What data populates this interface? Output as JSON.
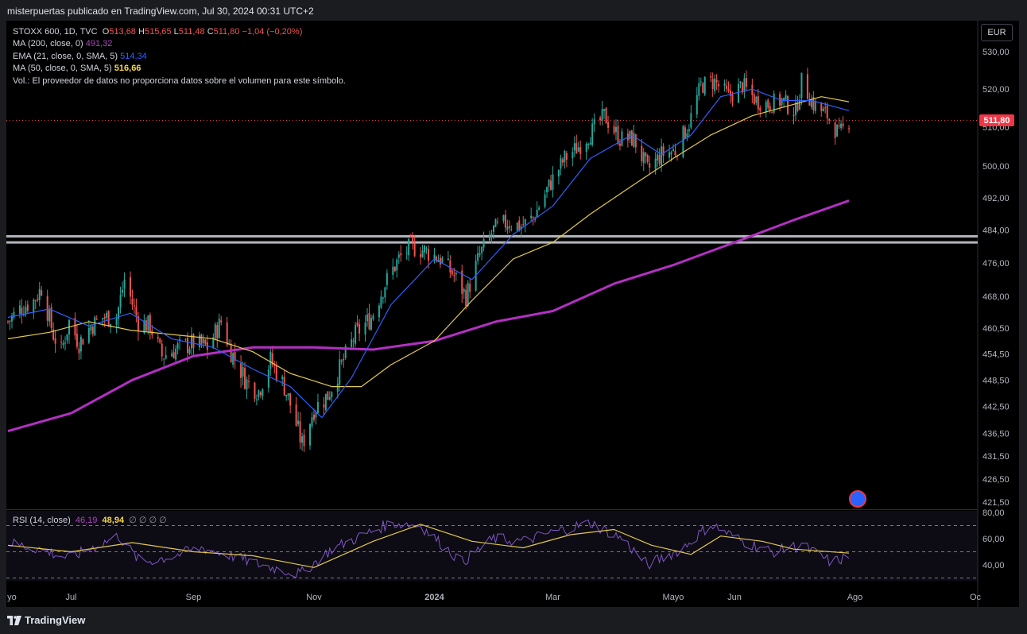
{
  "header": {
    "publisher": "misterpuertas publicado en TradingView.com, Jul 30, 2024 00:31 UTC+2"
  },
  "legend": {
    "symbol": "STOXX 600, 1D, TVC",
    "o_label": "O",
    "o_value": "513,68",
    "h_label": "H",
    "h_value": "515,65",
    "l_label": "L",
    "l_value": "511,48",
    "c_label": "C",
    "c_value": "511,80",
    "change": "−1,04 (−0,20%)",
    "ma200_label": "MA (200, close, 0)",
    "ma200_value": "491,32",
    "ema21_label": "EMA (21, close, 0, SMA, 5)",
    "ema21_value": "514,34",
    "ma50_label": "MA (50, close, 0, SMA, 5)",
    "ma50_value": "516,66",
    "vol_note": "Vol.: El proveedor de datos no proporciona datos sobre el volumen para este símbolo."
  },
  "rsi_legend": {
    "label": "RSI (14, close)",
    "rsi_value": "46,19",
    "ma_value": "48,94",
    "extra": "∅ ∅ ∅ ∅"
  },
  "currency": "EUR",
  "last_price_tag": "511,80",
  "footer": {
    "brand": "TradingView"
  },
  "colors": {
    "up": "#26a69a",
    "down": "#ef5350",
    "ma200": "#b42fc4",
    "ema21": "#2962ff",
    "ma50": "#e3c84a",
    "rsi": "#7e57c2",
    "rsi_ma": "#e3c84a",
    "support": "#b2b5be"
  },
  "chart_data": {
    "type": "candlestick",
    "price_axis": {
      "ticks": [
        "530,00",
        "520,00",
        "510,00",
        "500,00",
        "492,00",
        "484,00",
        "476,00",
        "468,00",
        "460,50",
        "454,50",
        "448,50",
        "442,50",
        "436,50",
        "431,50",
        "426,50",
        "421,50"
      ],
      "scale": "log"
    },
    "time_axis": {
      "labels": [
        "yo",
        "Jul",
        "Sep",
        "Nov",
        "2024",
        "Mar",
        "Mayo",
        "Jun",
        "Ago",
        "Oc"
      ]
    },
    "price_path": [
      [
        "2023-05-30",
        462
      ],
      [
        "2023-06-05",
        465
      ],
      [
        "2023-06-12",
        467
      ],
      [
        "2023-06-16",
        470
      ],
      [
        "2023-06-22",
        459
      ],
      [
        "2023-06-26",
        455
      ],
      [
        "2023-06-30",
        462
      ],
      [
        "2023-07-05",
        457
      ],
      [
        "2023-07-11",
        461
      ],
      [
        "2023-07-17",
        463
      ],
      [
        "2023-07-24",
        463
      ],
      [
        "2023-07-28",
        472
      ],
      [
        "2023-08-04",
        462
      ],
      [
        "2023-08-10",
        461
      ],
      [
        "2023-08-16",
        454
      ],
      [
        "2023-08-25",
        456
      ],
      [
        "2023-09-01",
        457
      ],
      [
        "2023-09-08",
        456
      ],
      [
        "2023-09-15",
        462
      ],
      [
        "2023-09-20",
        455
      ],
      [
        "2023-09-28",
        448
      ],
      [
        "2023-10-04",
        446
      ],
      [
        "2023-10-10",
        453
      ],
      [
        "2023-10-17",
        447
      ],
      [
        "2023-10-20",
        443
      ],
      [
        "2023-10-26",
        434
      ],
      [
        "2023-11-01",
        442
      ],
      [
        "2023-11-08",
        445
      ],
      [
        "2023-11-15",
        452
      ],
      [
        "2023-11-22",
        459
      ],
      [
        "2023-11-30",
        463
      ],
      [
        "2023-12-07",
        471
      ],
      [
        "2023-12-14",
        477
      ],
      [
        "2023-12-20",
        480
      ],
      [
        "2023-12-27",
        479
      ],
      [
        "2024-01-04",
        477
      ],
      [
        "2024-01-11",
        473
      ],
      [
        "2024-01-17",
        468
      ],
      [
        "2024-01-24",
        478
      ],
      [
        "2024-01-31",
        484
      ],
      [
        "2024-02-07",
        486
      ],
      [
        "2024-02-14",
        485
      ],
      [
        "2024-02-20",
        487
      ],
      [
        "2024-02-28",
        495
      ],
      [
        "2024-03-07",
        502
      ],
      [
        "2024-03-14",
        505
      ],
      [
        "2024-03-21",
        509
      ],
      [
        "2024-03-27",
        513
      ],
      [
        "2024-04-04",
        507
      ],
      [
        "2024-04-11",
        507
      ],
      [
        "2024-04-18",
        499
      ],
      [
        "2024-04-25",
        503
      ],
      [
        "2024-05-02",
        504
      ],
      [
        "2024-05-09",
        511
      ],
      [
        "2024-05-15",
        521
      ],
      [
        "2024-05-22",
        522
      ],
      [
        "2024-05-29",
        518
      ],
      [
        "2024-06-05",
        521
      ],
      [
        "2024-06-12",
        517
      ],
      [
        "2024-06-18",
        516
      ],
      [
        "2024-06-25",
        517
      ],
      [
        "2024-07-02",
        514
      ],
      [
        "2024-07-05",
        522
      ],
      [
        "2024-07-11",
        516
      ],
      [
        "2024-07-18",
        513
      ],
      [
        "2024-07-24",
        508
      ],
      [
        "2024-07-29",
        511.8
      ]
    ],
    "ma200_path": [
      [
        "2023-05-30",
        437
      ],
      [
        "2023-07-01",
        441
      ],
      [
        "2023-08-01",
        448.5
      ],
      [
        "2023-09-01",
        454
      ],
      [
        "2023-10-01",
        456
      ],
      [
        "2023-11-01",
        456
      ],
      [
        "2023-12-01",
        455.5
      ],
      [
        "2024-01-01",
        457.5
      ],
      [
        "2024-02-01",
        462
      ],
      [
        "2024-03-01",
        464.5
      ],
      [
        "2024-04-01",
        471
      ],
      [
        "2024-05-01",
        475.5
      ],
      [
        "2024-06-01",
        481
      ],
      [
        "2024-07-01",
        486.5
      ],
      [
        "2024-07-29",
        491.32
      ]
    ],
    "ma50_path": [
      [
        "2023-05-30",
        458
      ],
      [
        "2023-06-20",
        459.5
      ],
      [
        "2023-07-10",
        462
      ],
      [
        "2023-07-31",
        460
      ],
      [
        "2023-08-21",
        459
      ],
      [
        "2023-09-11",
        458
      ],
      [
        "2023-10-01",
        455
      ],
      [
        "2023-10-20",
        450
      ],
      [
        "2023-11-10",
        447
      ],
      [
        "2023-11-25",
        447
      ],
      [
        "2023-12-10",
        452
      ],
      [
        "2024-01-01",
        457.5
      ],
      [
        "2024-01-20",
        467
      ],
      [
        "2024-02-10",
        477
      ],
      [
        "2024-03-01",
        481
      ],
      [
        "2024-03-20",
        488
      ],
      [
        "2024-04-10",
        495
      ],
      [
        "2024-05-01",
        502
      ],
      [
        "2024-05-20",
        508
      ],
      [
        "2024-06-10",
        513
      ],
      [
        "2024-07-01",
        516
      ],
      [
        "2024-07-15",
        518
      ],
      [
        "2024-07-29",
        516.66
      ]
    ],
    "ema21_path": [
      [
        "2023-05-30",
        463
      ],
      [
        "2023-06-20",
        465
      ],
      [
        "2023-07-10",
        461
      ],
      [
        "2023-07-31",
        464
      ],
      [
        "2023-08-21",
        458
      ],
      [
        "2023-09-11",
        456
      ],
      [
        "2023-10-01",
        451
      ],
      [
        "2023-10-20",
        447
      ],
      [
        "2023-11-05",
        440
      ],
      [
        "2023-11-20",
        449
      ],
      [
        "2023-12-10",
        466
      ],
      [
        "2024-01-01",
        477
      ],
      [
        "2024-01-20",
        472
      ],
      [
        "2024-02-10",
        483
      ],
      [
        "2024-03-01",
        490
      ],
      [
        "2024-03-20",
        502
      ],
      [
        "2024-04-10",
        508
      ],
      [
        "2024-04-25",
        503
      ],
      [
        "2024-05-10",
        508
      ],
      [
        "2024-05-25",
        518
      ],
      [
        "2024-06-10",
        520
      ],
      [
        "2024-06-25",
        517
      ],
      [
        "2024-07-10",
        517
      ],
      [
        "2024-07-29",
        514.34
      ]
    ],
    "support_levels": [
      482.5,
      481.0
    ],
    "rsi": {
      "axis_ticks": [
        "80,00",
        "60,00",
        "40,00"
      ],
      "levels": [
        70,
        50,
        30
      ],
      "path": [
        [
          "2023-05-30",
          57
        ],
        [
          "2023-06-15",
          52
        ],
        [
          "2023-06-30",
          45
        ],
        [
          "2023-07-10",
          52
        ],
        [
          "2023-07-25",
          62
        ],
        [
          "2023-08-05",
          42
        ],
        [
          "2023-08-20",
          46
        ],
        [
          "2023-09-05",
          53
        ],
        [
          "2023-09-20",
          47
        ],
        [
          "2023-10-05",
          40
        ],
        [
          "2023-10-25",
          33
        ],
        [
          "2023-11-10",
          52
        ],
        [
          "2023-11-25",
          62
        ],
        [
          "2023-12-10",
          72
        ],
        [
          "2023-12-25",
          70
        ],
        [
          "2024-01-15",
          42
        ],
        [
          "2024-01-31",
          60
        ],
        [
          "2024-02-15",
          58
        ],
        [
          "2024-03-01",
          65
        ],
        [
          "2024-03-20",
          72
        ],
        [
          "2024-04-05",
          60
        ],
        [
          "2024-04-18",
          40
        ],
        [
          "2024-05-05",
          52
        ],
        [
          "2024-05-20",
          71
        ],
        [
          "2024-06-05",
          58
        ],
        [
          "2024-06-20",
          50
        ],
        [
          "2024-07-05",
          55
        ],
        [
          "2024-07-20",
          42
        ],
        [
          "2024-07-29",
          46.19
        ]
      ],
      "ma_path": [
        [
          "2023-05-30",
          55
        ],
        [
          "2023-07-01",
          50
        ],
        [
          "2023-08-01",
          57
        ],
        [
          "2023-09-01",
          50
        ],
        [
          "2023-10-01",
          47
        ],
        [
          "2023-11-01",
          38
        ],
        [
          "2023-12-01",
          58
        ],
        [
          "2023-12-25",
          71
        ],
        [
          "2024-01-20",
          58
        ],
        [
          "2024-02-15",
          53
        ],
        [
          "2024-03-10",
          63
        ],
        [
          "2024-04-01",
          67
        ],
        [
          "2024-04-20",
          55
        ],
        [
          "2024-05-10",
          48
        ],
        [
          "2024-05-25",
          62
        ],
        [
          "2024-06-15",
          58
        ],
        [
          "2024-07-01",
          52
        ],
        [
          "2024-07-29",
          48.94
        ]
      ]
    }
  }
}
